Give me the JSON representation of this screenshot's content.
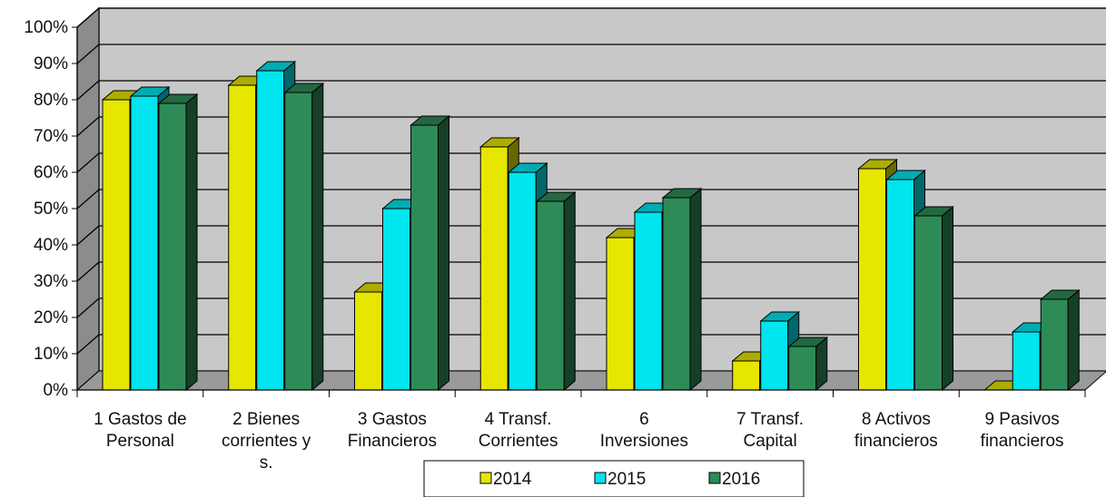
{
  "chart_data": {
    "type": "bar",
    "title": "",
    "xlabel": "",
    "ylabel": "",
    "ylim": [
      0,
      100
    ],
    "y_ticks": [
      "0%",
      "10%",
      "20%",
      "30%",
      "40%",
      "50%",
      "60%",
      "70%",
      "80%",
      "90%",
      "100%"
    ],
    "categories": [
      "1 Gastos de Personal",
      "2 Bienes corrientes y s.",
      "3 Gastos Financieros",
      "4 Transf. Corrientes",
      "6 Inversiones",
      "7 Transf. Capital",
      "8 Activos financieros",
      "9 Pasivos financieros"
    ],
    "category_lines": [
      [
        "1 Gastos de",
        "Personal"
      ],
      [
        "2 Bienes",
        "corrientes y",
        "s."
      ],
      [
        "3 Gastos",
        "Financieros"
      ],
      [
        "4 Transf.",
        "Corrientes"
      ],
      [
        "6",
        "Inversiones"
      ],
      [
        "7 Transf.",
        "Capital"
      ],
      [
        "8 Activos",
        "financieros"
      ],
      [
        "9 Pasivos",
        "financieros"
      ]
    ],
    "series": [
      {
        "name": "2014",
        "color": "#e6e600",
        "values": [
          80,
          84,
          27,
          67,
          42,
          8,
          61,
          0
        ]
      },
      {
        "name": "2015",
        "color": "#00e5ee",
        "values": [
          81,
          88,
          50,
          60,
          49,
          19,
          58,
          16
        ]
      },
      {
        "name": "2016",
        "color": "#2e8b57",
        "values": [
          79,
          82,
          73,
          52,
          53,
          12,
          48,
          25
        ]
      }
    ],
    "grid": true,
    "legend_position": "bottom",
    "style": "3d-clustered-column"
  }
}
